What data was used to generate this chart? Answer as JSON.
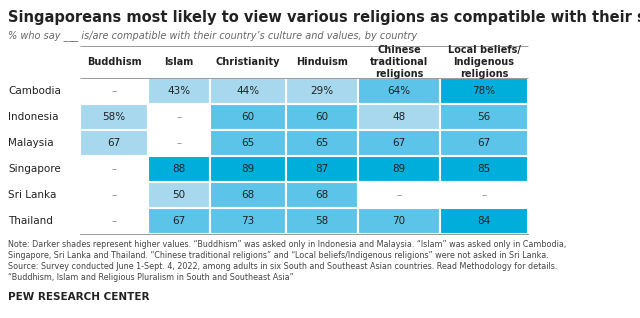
{
  "title": "Singaporeans most likely to view various religions as compatible with their society",
  "subtitle": "% who say ___ is/are compatible with their country’s culture and values, by country",
  "columns": [
    "Buddhism",
    "Islam",
    "Christianity",
    "Hinduism",
    "Chinese\ntraditional\nreligions",
    "Local beliefs/\nIndigenous\nreligions"
  ],
  "rows": [
    "Cambodia",
    "Indonesia",
    "Malaysia",
    "Singapore",
    "Sri Lanka",
    "Thailand"
  ],
  "data": [
    [
      null,
      "43%",
      "44%",
      "29%",
      "64%",
      "78%"
    ],
    [
      "58%",
      null,
      "60",
      "60",
      "48",
      "56"
    ],
    [
      "67",
      null,
      "65",
      "65",
      "67",
      "67"
    ],
    [
      null,
      "88",
      "89",
      "87",
      "89",
      "85"
    ],
    [
      null,
      "50",
      "68",
      "68",
      null,
      null
    ],
    [
      null,
      "67",
      "73",
      "58",
      "70",
      "84"
    ]
  ],
  "note": "Note: Darker shades represent higher values. “Buddhism” was asked only in Indonesia and Malaysia. “Islam” was asked only in Cambodia,\nSingapore, Sri Lanka and Thailand. “Chinese traditional religions” and “Local beliefs/Indigenous religions” were not asked in Sri Lanka.\nSource: Survey conducted June 1-Sept. 4, 2022, among adults in six South and Southeast Asian countries. Read Methodology for details.\n“Buddhism, Islam and Religious Pluralism in South and Southeast Asia”",
  "footer": "PEW RESEARCH CENTER",
  "cell_colors": [
    [
      "#ffffff",
      "#a8d8ee",
      "#a8d8ee",
      "#a8d8ee",
      "#5bc4e8",
      "#00aedb"
    ],
    [
      "#a8d8ee",
      "#ffffff",
      "#5bc4e8",
      "#5bc4e8",
      "#a8d8ee",
      "#5bc4e8"
    ],
    [
      "#a8d8ee",
      "#ffffff",
      "#5bc4e8",
      "#5bc4e8",
      "#5bc4e8",
      "#5bc4e8"
    ],
    [
      "#ffffff",
      "#00aedb",
      "#00aedb",
      "#00aedb",
      "#00aedb",
      "#00aedb"
    ],
    [
      "#ffffff",
      "#a8d8ee",
      "#5bc4e8",
      "#5bc4e8",
      "#ffffff",
      "#ffffff"
    ],
    [
      "#ffffff",
      "#5bc4e8",
      "#5bc4e8",
      "#5bc4e8",
      "#5bc4e8",
      "#00aedb"
    ]
  ],
  "bg_color": "#ffffff",
  "text_color": "#222222",
  "note_color": "#444444",
  "title_fontsize": 10.5,
  "subtitle_fontsize": 7,
  "header_fontsize": 7,
  "cell_fontsize": 7.5,
  "note_fontsize": 5.8,
  "footer_fontsize": 7.5
}
